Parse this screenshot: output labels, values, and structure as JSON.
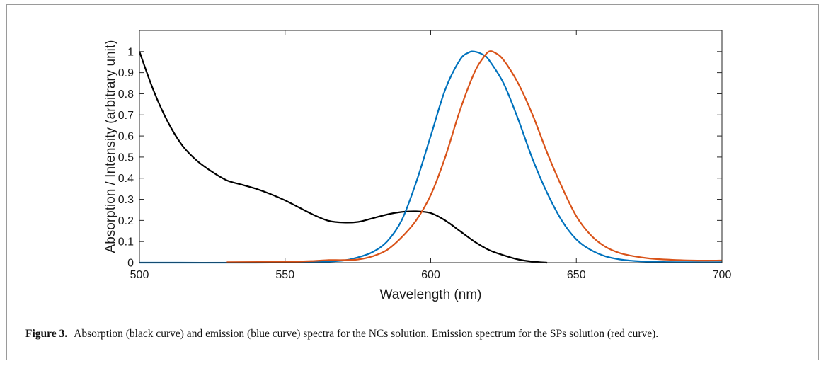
{
  "chart_data": {
    "type": "line",
    "title": "",
    "xlabel": "Wavelength (nm)",
    "ylabel": "Absorption / Intensity (arbitrary unit)",
    "xlim": [
      500,
      700
    ],
    "ylim": [
      0,
      1.1
    ],
    "xticks": [
      500,
      550,
      600,
      650,
      700
    ],
    "yticks": [
      0,
      0.1,
      0.2,
      0.3,
      0.4,
      0.5,
      0.6,
      0.7,
      0.8,
      0.9,
      1
    ],
    "grid": false,
    "legend": "none",
    "series": [
      {
        "color": "#000000",
        "x": [
          500,
          505,
          510,
          515,
          520,
          525,
          530,
          535,
          540,
          545,
          550,
          555,
          560,
          565,
          570,
          575,
          580,
          585,
          590,
          595,
          600,
          605,
          610,
          615,
          620,
          625,
          630,
          635,
          640
        ],
        "y": [
          1.0,
          0.81,
          0.66,
          0.55,
          0.48,
          0.43,
          0.39,
          0.37,
          0.35,
          0.325,
          0.295,
          0.26,
          0.225,
          0.198,
          0.19,
          0.193,
          0.21,
          0.228,
          0.24,
          0.243,
          0.235,
          0.2,
          0.15,
          0.1,
          0.06,
          0.035,
          0.015,
          0.005,
          0.0
        ]
      },
      {
        "color": "#0072BD",
        "x": [
          500,
          540,
          560,
          570,
          575,
          580,
          585,
          590,
          595,
          600,
          605,
          610,
          613,
          615,
          618,
          620,
          625,
          630,
          635,
          640,
          645,
          650,
          655,
          660,
          665,
          670,
          680,
          690,
          700
        ],
        "y": [
          0.0,
          0.0,
          0.003,
          0.01,
          0.025,
          0.05,
          0.1,
          0.2,
          0.38,
          0.6,
          0.82,
          0.96,
          0.995,
          1.0,
          0.985,
          0.96,
          0.85,
          0.68,
          0.49,
          0.33,
          0.2,
          0.11,
          0.06,
          0.03,
          0.015,
          0.008,
          0.003,
          0.002,
          0.002
        ]
      },
      {
        "color": "#D95319",
        "x": [
          530,
          550,
          560,
          565,
          570,
          575,
          580,
          585,
          590,
          595,
          600,
          605,
          610,
          615,
          618,
          620,
          622,
          625,
          630,
          635,
          640,
          645,
          650,
          655,
          660,
          665,
          670,
          675,
          680,
          690,
          700
        ],
        "y": [
          0.002,
          0.004,
          0.008,
          0.012,
          0.012,
          0.015,
          0.03,
          0.06,
          0.12,
          0.2,
          0.32,
          0.5,
          0.72,
          0.9,
          0.97,
          1.0,
          0.995,
          0.96,
          0.85,
          0.7,
          0.52,
          0.36,
          0.22,
          0.13,
          0.075,
          0.045,
          0.03,
          0.02,
          0.015,
          0.01,
          0.01
        ]
      }
    ]
  },
  "caption": {
    "label": "Figure 3.",
    "text": "Absorption (black curve) and emission (blue curve) spectra for the NCs solution. Emission spectrum for the SPs solution (red curve)."
  }
}
